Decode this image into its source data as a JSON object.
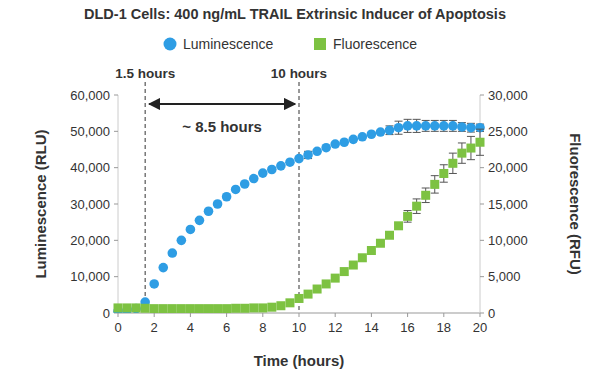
{
  "chart_data": {
    "type": "scatter",
    "title": "DLD-1 Cells: 400 ng/mL TRAIL Extrinsic Inducer of Apoptosis",
    "x_label": "Time (hours)",
    "y_label": "Luminescence (RLU)",
    "y2_label": "Fluorescence (RFU)",
    "legend": "top",
    "grid": false,
    "x": [
      0,
      0.5,
      1,
      1.5,
      2,
      2.5,
      3,
      3.5,
      4,
      4.5,
      5,
      5.5,
      6,
      6.5,
      7,
      7.5,
      8,
      8.5,
      9,
      9.5,
      10,
      10.5,
      11,
      11.5,
      12,
      12.5,
      13,
      13.5,
      14,
      14.5,
      15,
      15.5,
      16,
      16.5,
      17,
      17.5,
      18,
      18.5,
      19,
      19.5,
      20
    ],
    "xlim": [
      0,
      20
    ],
    "xticks": [
      0,
      2,
      4,
      6,
      8,
      10,
      12,
      14,
      16,
      18,
      20
    ],
    "ylim": [
      0,
      60000
    ],
    "yticks": [
      0,
      {
        "value": 10000,
        "label": "10,000"
      },
      {
        "value": 20000,
        "label": "20,000"
      },
      {
        "value": 30000,
        "label": "30,000"
      },
      {
        "value": 40000,
        "label": "40,000"
      },
      {
        "value": 50000,
        "label": "50,000"
      },
      {
        "value": 60000,
        "label": "60,000"
      }
    ],
    "y2lim": [
      0,
      30000
    ],
    "y2ticks": [
      0,
      {
        "value": 5000,
        "label": "5,000"
      },
      {
        "value": 10000,
        "label": "10,000"
      },
      {
        "value": 15000,
        "label": "15,000"
      },
      {
        "value": 20000,
        "label": "20,000"
      },
      {
        "value": 25000,
        "label": "25,000"
      },
      {
        "value": 30000,
        "label": "30,000"
      }
    ],
    "series": [
      {
        "name": "Luminescence",
        "color": "#2e9de4",
        "marker": "circle",
        "axis": "y",
        "values": [
          500,
          800,
          1200,
          3000,
          8000,
          12500,
          16500,
          20000,
          23000,
          25500,
          28000,
          30000,
          32000,
          34000,
          35500,
          37000,
          38500,
          39500,
          40500,
          41500,
          42500,
          43500,
          44500,
          45500,
          46500,
          47000,
          47800,
          48500,
          49200,
          49800,
          50300,
          51000,
          51500,
          51500,
          51500,
          51500,
          51500,
          51500,
          51200,
          51000,
          51000
        ],
        "errors": [
          null,
          null,
          null,
          null,
          null,
          null,
          null,
          null,
          null,
          null,
          null,
          null,
          null,
          null,
          null,
          null,
          null,
          null,
          null,
          null,
          null,
          1000,
          null,
          null,
          null,
          null,
          null,
          null,
          null,
          null,
          1200,
          1800,
          1800,
          1800,
          1500,
          1500,
          1500,
          1500,
          1200,
          1200,
          1000
        ]
      },
      {
        "name": "Fluorescence",
        "color": "#7dc242",
        "marker": "square",
        "axis": "y2",
        "values": [
          700,
          700,
          700,
          650,
          600,
          600,
          600,
          600,
          600,
          600,
          600,
          600,
          600,
          650,
          650,
          700,
          700,
          800,
          1000,
          1400,
          2000,
          2600,
          3300,
          4000,
          4800,
          5700,
          6600,
          7600,
          8600,
          9600,
          10700,
          12000,
          13300,
          14700,
          16200,
          17700,
          19200,
          20600,
          22000,
          22700,
          23500
        ],
        "errors": [
          null,
          null,
          null,
          null,
          null,
          null,
          null,
          null,
          null,
          null,
          null,
          null,
          null,
          null,
          null,
          null,
          null,
          null,
          null,
          null,
          null,
          null,
          null,
          null,
          null,
          null,
          null,
          null,
          null,
          null,
          null,
          null,
          800,
          1000,
          1000,
          1200,
          1200,
          1400,
          1400,
          1600,
          1800
        ]
      }
    ],
    "annotations": [
      {
        "text": "1.5 hours",
        "x": 1.5,
        "line_style": "dashed"
      },
      {
        "text": "10 hours",
        "x": 10,
        "line_style": "dashed"
      },
      {
        "text": "~ 8.5 hours",
        "x_start": 1.5,
        "x_end": 10
      }
    ]
  }
}
